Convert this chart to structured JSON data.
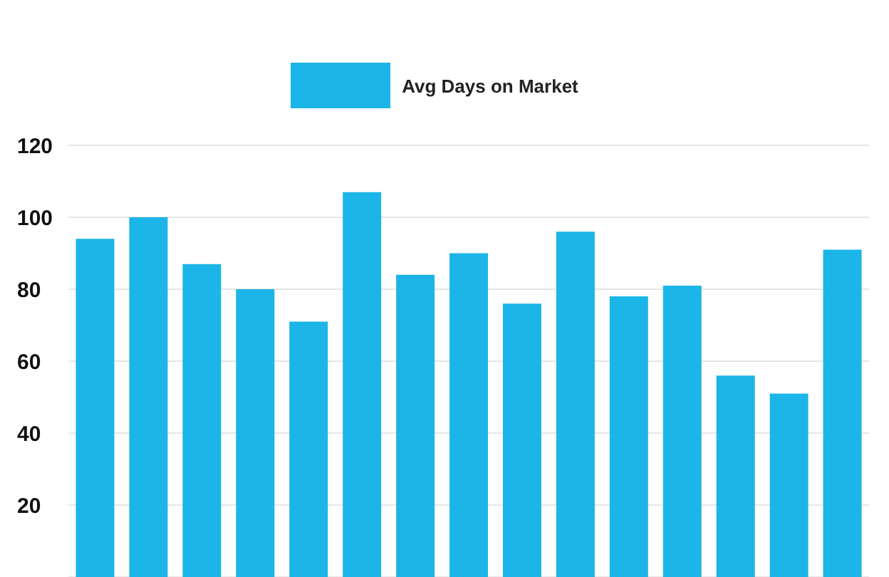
{
  "chart_data": {
    "type": "bar",
    "categories": [
      null,
      null,
      null,
      null,
      null,
      null,
      null,
      null,
      null,
      null,
      null,
      null,
      null,
      null,
      null
    ],
    "series": [
      {
        "name": "Avg Days on Market",
        "color": "#1cb5e8",
        "values": [
          94,
          100,
          87,
          80,
          71,
          107,
          84,
          90,
          76,
          96,
          78,
          81,
          56,
          51,
          91
        ]
      }
    ],
    "ylim": [
      0,
      120
    ],
    "yticks": [
      20,
      40,
      60,
      80,
      100,
      120
    ],
    "grid": "y",
    "legend": "top",
    "tick_labels": "y"
  }
}
